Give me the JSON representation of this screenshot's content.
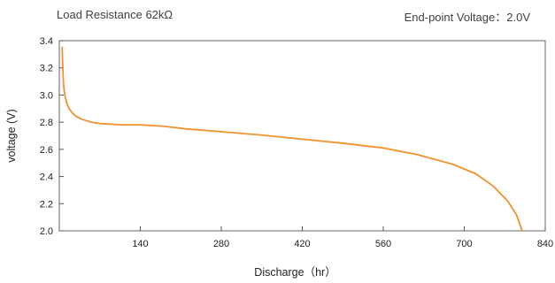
{
  "header": {
    "left_label": "Load Resistance 62kΩ",
    "right_label": "End-point Voltage：2.0V"
  },
  "chart_data": {
    "type": "line",
    "title": "",
    "xlabel": "Discharge（hr）",
    "ylabel": "voltage (V)",
    "xlim": [
      0,
      840
    ],
    "ylim": [
      2.0,
      3.4
    ],
    "xticks": [
      "140",
      "280",
      "420",
      "560",
      "700",
      "840"
    ],
    "yticks": [
      "2.0",
      "2.2",
      "2.4",
      "2.6",
      "2.8",
      "3.0",
      "3.2",
      "3.4"
    ],
    "grid": false,
    "legend": "none",
    "series": [
      {
        "color": "#F0922E",
        "x": [
          5,
          5.5,
          6,
          7,
          8,
          10,
          13,
          17,
          22,
          30,
          40,
          55,
          70,
          90,
          110,
          140,
          180,
          220,
          280,
          350,
          420,
          490,
          560,
          620,
          680,
          720,
          750,
          775,
          790,
          800
        ],
        "y": [
          3.35,
          3.28,
          3.2,
          3.1,
          3.05,
          2.99,
          2.94,
          2.9,
          2.87,
          2.84,
          2.82,
          2.8,
          2.79,
          2.785,
          2.78,
          2.78,
          2.77,
          2.75,
          2.73,
          2.705,
          2.675,
          2.645,
          2.61,
          2.56,
          2.49,
          2.42,
          2.33,
          2.22,
          2.12,
          2.0
        ]
      }
    ]
  }
}
